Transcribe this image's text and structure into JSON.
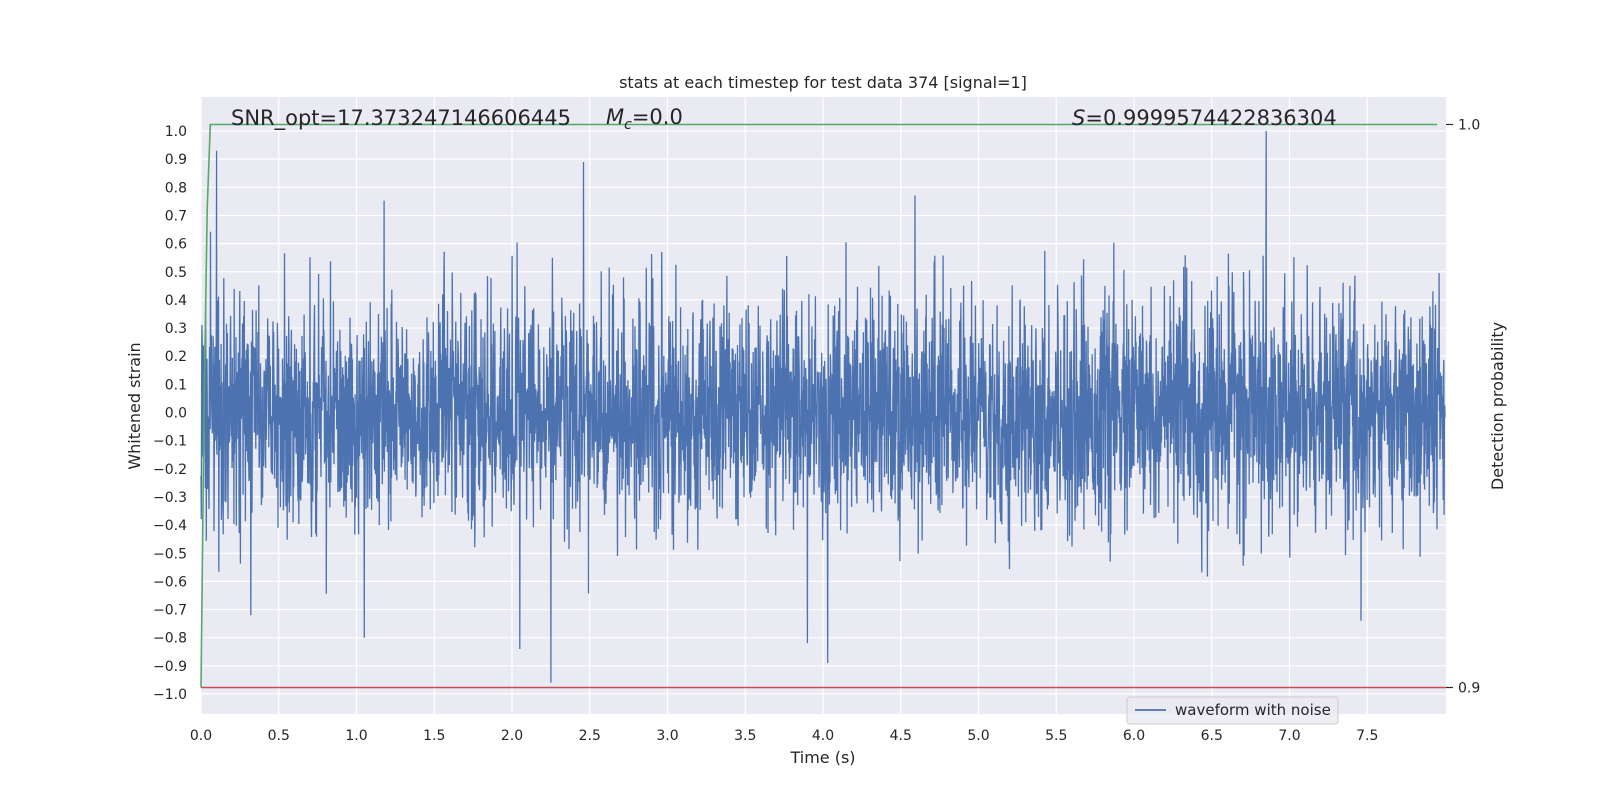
{
  "chart_data": {
    "type": "line",
    "title": "stats at each timestep for test data 374 [signal=1]",
    "xlabel": "Time (s)",
    "ylabel": "Whitened strain",
    "y2label": "Detection probability",
    "xlim": [
      0.0,
      8.0
    ],
    "ylim": [
      -1.05,
      1.05
    ],
    "y2lim": [
      0.8955,
      1.0045
    ],
    "x_ticks": [
      "0.0",
      "0.5",
      "1.0",
      "1.5",
      "2.0",
      "2.5",
      "3.0",
      "3.5",
      "4.0",
      "4.5",
      "5.0",
      "5.5",
      "6.0",
      "6.5",
      "7.0",
      "7.5"
    ],
    "y_ticks": [
      "1.0",
      "0.9",
      "0.8",
      "0.7",
      "0.6",
      "0.5",
      "0.4",
      "0.3",
      "0.2",
      "0.1",
      "0.0",
      "−0.1",
      "−0.2",
      "−0.3",
      "−0.4",
      "−0.5",
      "−0.6",
      "−0.7",
      "−0.8",
      "−0.9",
      "−1.0"
    ],
    "y2_ticks": [
      "1.0",
      "0.9"
    ],
    "grid": true,
    "legend_location": "lower right",
    "annotations": {
      "snr": "SNR_opt=17.373247146606445",
      "mc_symbol": "M",
      "mc_sub": "c",
      "mc_value": "=0.0",
      "s_symbol": "S",
      "s_value": "=0.9999574422836304"
    },
    "series": [
      {
        "name": "waveform with noise",
        "color": "#4c72b0",
        "duration_s": 8.0,
        "typical_amplitude": 0.2,
        "range": [
          -0.96,
          1.0
        ],
        "notable_peaks": [
          {
            "x": 0.1,
            "y": 0.93
          },
          {
            "x": 2.46,
            "y": 0.89
          },
          {
            "x": 6.85,
            "y": 1.0
          },
          {
            "x": 2.25,
            "y": -0.96
          },
          {
            "x": 4.03,
            "y": -0.89
          },
          {
            "x": 3.9,
            "y": -0.82
          },
          {
            "x": 2.05,
            "y": -0.84
          },
          {
            "x": 1.05,
            "y": -0.8
          },
          {
            "x": 7.46,
            "y": -0.74
          },
          {
            "x": 0.32,
            "y": -0.72
          }
        ]
      },
      {
        "name": "",
        "color": "#55a868",
        "axis": "right",
        "x": [
          0.0,
          0.02,
          0.04,
          0.06,
          0.1,
          0.2,
          7.95
        ],
        "y": [
          0.9,
          0.95,
          0.985,
          1.0,
          1.0,
          1.0,
          1.0
        ]
      },
      {
        "name": "",
        "color": "#c44e52",
        "axis": "right",
        "type": "hline",
        "y": 0.9
      }
    ],
    "legend": [
      {
        "name": "waveform with noise",
        "color": "#4c72b0"
      }
    ]
  }
}
